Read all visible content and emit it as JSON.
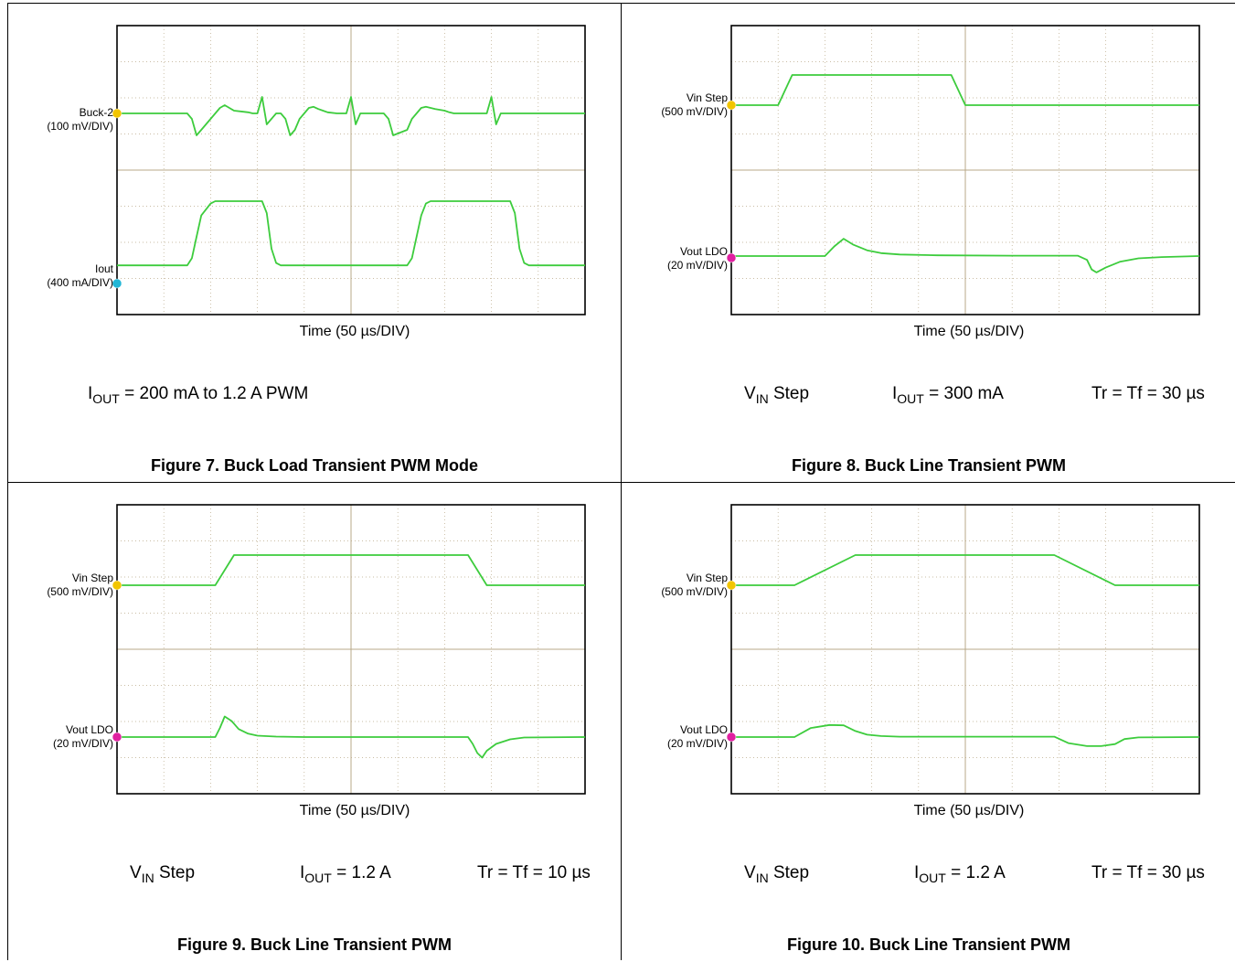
{
  "chart_data": [
    {
      "type": "line",
      "figure_caption": "Figure 7. Buck Load Transient PWM Mode",
      "xlabel": "Time (50 µs/DIV)",
      "channels": [
        {
          "label_line1": "Buck-2",
          "label_line2": "(100 mV/DIV)",
          "marker_color": "#f2c500"
        },
        {
          "label_line1": "Iout",
          "label_line2": "(400 mA/DIV)",
          "marker_color": "#20b6d6"
        }
      ],
      "conditions": [
        {
          "main": "I",
          "sub": "OUT",
          "rest": " = 200 mA to 1.2 A PWM"
        }
      ],
      "series": [
        {
          "name": "Buck-2",
          "x": [
            0,
            0.75,
            0.8,
            0.85,
            0.9,
            1.0,
            1.05,
            1.1,
            1.15,
            1.2,
            1.25,
            1.35,
            1.4,
            1.45,
            1.5,
            1.55,
            1.6,
            1.7,
            1.75,
            1.8,
            1.85,
            1.9,
            1.95,
            2.0,
            2.05,
            2.1,
            2.15,
            2.2,
            2.25,
            2.35,
            2.45,
            2.5,
            2.55,
            2.6,
            2.65,
            2.7,
            2.8,
            2.85,
            2.9,
            2.95,
            3.1,
            3.15,
            3.2,
            3.25,
            3.3,
            3.4,
            3.5,
            3.55,
            3.6,
            3.65,
            3.75,
            3.8,
            3.9,
            3.95,
            4.0,
            4.05,
            4.1,
            4.2,
            4.25,
            4.35,
            4.45,
            4.5,
            4.6,
            5.0
          ],
          "y": [
            0,
            0,
            -0.1,
            -0.4,
            -0.3,
            -0.1,
            0,
            0.1,
            0.15,
            0.1,
            0.05,
            0.03,
            0.02,
            0,
            0,
            0.3,
            -0.2,
            0,
            0,
            -0.1,
            -0.4,
            -0.3,
            -0.1,
            0,
            0.1,
            0.12,
            0.08,
            0.05,
            0.02,
            0,
            0,
            0.3,
            -0.2,
            0,
            0,
            0,
            0,
            0,
            -0.1,
            -0.4,
            -0.3,
            -0.1,
            0,
            0.1,
            0.12,
            0.08,
            0.05,
            0.02,
            0,
            0,
            0,
            0,
            0,
            0,
            0.3,
            -0.2,
            0,
            0,
            0,
            0,
            0,
            0,
            0,
            0
          ]
        },
        {
          "name": "Iout",
          "x": [
            0,
            0.75,
            0.8,
            0.85,
            0.9,
            1.0,
            1.05,
            1.1,
            1.15,
            1.2,
            1.25,
            1.5,
            1.55,
            1.6,
            1.65,
            1.7,
            1.75,
            1.8,
            3.1,
            3.15,
            3.2,
            3.25,
            3.3,
            3.35,
            3.4,
            3.45,
            3.5,
            4.2,
            4.25,
            4.3,
            4.35,
            4.4,
            4.45,
            4.5,
            5.0
          ],
          "y": [
            0.3,
            0.3,
            0.6,
            1.5,
            2.4,
            2.9,
            3.0,
            3.0,
            3.0,
            3.0,
            3.0,
            3.0,
            3.0,
            2.5,
            1.0,
            0.4,
            0.3,
            0.3,
            0.3,
            0.6,
            1.5,
            2.4,
            2.9,
            3.0,
            3.0,
            3.0,
            3.0,
            3.0,
            2.5,
            1.0,
            0.4,
            0.3,
            0.3,
            0.3,
            0.3
          ]
        }
      ]
    },
    {
      "type": "line",
      "figure_caption": "Figure 8. Buck Line Transient PWM",
      "xlabel": "Time (50 µs/DIV)",
      "channels": [
        {
          "label_line1": "Vin Step",
          "label_line2": "(500 mV/DIV)",
          "marker_color": "#f2c500"
        },
        {
          "label_line1": "Vout LDO",
          "label_line2": "(20 mV/DIV)",
          "marker_color": "#e020a0"
        }
      ],
      "conditions": [
        {
          "main": "V",
          "sub": "IN",
          "rest": " Step"
        },
        {
          "main": "I",
          "sub": "OUT",
          "rest": " = 300 mA"
        },
        {
          "main": "Tr = Tf = 30 µs",
          "sub": "",
          "rest": ""
        }
      ],
      "series": [
        {
          "name": "Vin Step",
          "x": [
            0,
            1.0,
            1.3,
            4.7,
            5.0,
            10.0
          ],
          "y": [
            0,
            0,
            1.1,
            1.1,
            0,
            0
          ]
        },
        {
          "name": "Vout LDO",
          "x": [
            0,
            1.0,
            1.1,
            1.2,
            1.3,
            1.45,
            1.6,
            1.8,
            2.2,
            3.0,
            3.7,
            3.8,
            3.85,
            3.9,
            4.0,
            4.15,
            4.35,
            4.6,
            5.0
          ],
          "y": [
            0,
            0,
            0.5,
            0.9,
            0.6,
            0.3,
            0.15,
            0.08,
            0.04,
            0.02,
            0.02,
            -0.2,
            -0.7,
            -0.85,
            -0.6,
            -0.3,
            -0.12,
            -0.05,
            0
          ]
        }
      ]
    },
    {
      "type": "line",
      "figure_caption": "Figure 9. Buck Line Transient PWM",
      "xlabel": "Time (50 µs/DIV)",
      "channels": [
        {
          "label_line1": "Vin Step",
          "label_line2": "(500 mV/DIV)",
          "marker_color": "#f2c500"
        },
        {
          "label_line1": "Vout LDO",
          "label_line2": "(20 mV/DIV)",
          "marker_color": "#e020a0"
        }
      ],
      "conditions": [
        {
          "main": "V",
          "sub": "IN",
          "rest": " Step"
        },
        {
          "main": "I",
          "sub": "OUT",
          "rest": " = 1.2 A"
        },
        {
          "main": "Tr = Tf = 10 µs",
          "sub": "",
          "rest": ""
        }
      ],
      "series": [
        {
          "name": "Vin Step",
          "x": [
            0,
            2.1,
            2.5,
            7.5,
            7.9,
            10.0
          ],
          "y": [
            0,
            0,
            1.1,
            1.1,
            0,
            0
          ]
        },
        {
          "name": "Vout LDO",
          "x": [
            0,
            2.1,
            2.2,
            2.3,
            2.45,
            2.6,
            2.8,
            3.0,
            3.4,
            4.0,
            7.5,
            7.6,
            7.7,
            7.8,
            7.9,
            8.1,
            8.4,
            8.7,
            10.0
          ],
          "y": [
            0,
            0,
            0.4,
            0.9,
            0.7,
            0.35,
            0.15,
            0.06,
            0.02,
            0,
            0,
            -0.3,
            -0.7,
            -0.9,
            -0.6,
            -0.3,
            -0.1,
            -0.02,
            0
          ]
        }
      ]
    },
    {
      "type": "line",
      "figure_caption": "Figure 10. Buck Line Transient PWM",
      "xlabel": "Time (50 µs/DIV)",
      "channels": [
        {
          "label_line1": "Vin Step",
          "label_line2": "(500 mV/DIV)",
          "marker_color": "#f2c500"
        },
        {
          "label_line1": "Vout LDO",
          "label_line2": "(20 mV/DIV)",
          "marker_color": "#e020a0"
        }
      ],
      "conditions": [
        {
          "main": "V",
          "sub": "IN",
          "rest": " Step"
        },
        {
          "main": "I",
          "sub": "OUT",
          "rest": " = 1.2 A"
        },
        {
          "main": "Tr = Tf = 30 µs",
          "sub": "",
          "rest": ""
        }
      ],
      "series": [
        {
          "name": "Vin Step",
          "x": [
            0,
            1.35,
            2.65,
            6.9,
            8.2,
            10.0
          ],
          "y": [
            0,
            0,
            1.1,
            1.1,
            0,
            0
          ]
        },
        {
          "name": "Vout LDO",
          "x": [
            0,
            1.35,
            1.7,
            2.1,
            2.4,
            2.65,
            2.9,
            3.2,
            3.6,
            6.9,
            7.2,
            7.6,
            7.9,
            8.2,
            8.4,
            8.7,
            10.0
          ],
          "y": [
            0,
            0,
            0.45,
            0.6,
            0.58,
            0.3,
            0.12,
            0.05,
            0.02,
            0.02,
            -0.3,
            -0.45,
            -0.45,
            -0.35,
            -0.1,
            -0.02,
            0
          ]
        }
      ]
    }
  ],
  "colors": {
    "trace": "#3dcc3d",
    "grid": "#b9a888",
    "frame": "#000000"
  }
}
